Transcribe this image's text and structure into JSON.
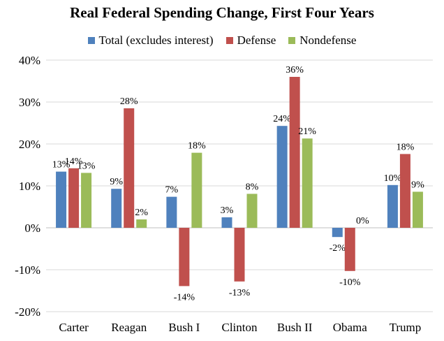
{
  "chart_data": {
    "type": "bar",
    "title": "Real Federal Spending Change, First Four Years",
    "categories": [
      "Carter",
      "Reagan",
      "Bush I",
      "Clinton",
      "Bush II",
      "Obama",
      "Trump"
    ],
    "series": [
      {
        "name": "Total (excludes interest)",
        "color": "#4F81BD",
        "values": [
          13.4,
          9.3,
          7.4,
          2.5,
          24.3,
          -2.2,
          10.2
        ],
        "labels": [
          "13%",
          "9%",
          "7%",
          "3%",
          "24%",
          "-2%",
          "10%"
        ]
      },
      {
        "name": "Defense",
        "color": "#C0504D",
        "values": [
          14.2,
          28.5,
          -13.9,
          -12.8,
          36.0,
          -10.3,
          17.6
        ],
        "labels": [
          "14%",
          "28%",
          "-14%",
          "-13%",
          "36%",
          "-10%",
          "18%"
        ]
      },
      {
        "name": "Nondefense",
        "color": "#9BBB59",
        "values": [
          13.1,
          2.0,
          17.9,
          8.1,
          21.3,
          0.0,
          8.6
        ],
        "labels": [
          "13%",
          "2%",
          "18%",
          "8%",
          "21%",
          "0%",
          "9%"
        ]
      }
    ],
    "ylim": [
      -20,
      40
    ],
    "yticks": [
      -20,
      -10,
      0,
      10,
      20,
      30,
      40
    ],
    "ytick_labels": [
      "-20%",
      "-10%",
      "0%",
      "10%",
      "20%",
      "30%",
      "40%"
    ],
    "grid": true,
    "legend_position": "top"
  }
}
